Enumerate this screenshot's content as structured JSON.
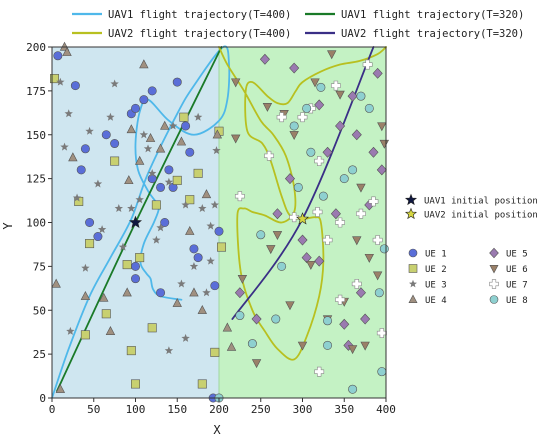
{
  "chart_data": {
    "type": "scatter",
    "xlabel": "X",
    "ylabel": "Y",
    "xlim": [
      0,
      400
    ],
    "ylim": [
      0,
      200
    ],
    "xticks": [
      0,
      50,
      100,
      150,
      200,
      250,
      300,
      350,
      400
    ],
    "yticks": [
      0,
      25,
      50,
      75,
      100,
      125,
      150,
      175,
      200
    ],
    "grid": false,
    "regions": [
      {
        "x_range": [
          0,
          200
        ],
        "color": "#cfe6f0"
      },
      {
        "x_range": [
          200,
          400
        ],
        "color": "#c4f2c4"
      }
    ],
    "trajectories": [
      {
        "name": "UAV1 flight trajectory(T=400)",
        "color": "#4fb8ea",
        "width": 1.8,
        "points": [
          [
            0,
            0
          ],
          [
            20,
            28
          ],
          [
            45,
            58
          ],
          [
            70,
            80
          ],
          [
            95,
            102
          ],
          [
            115,
            128
          ],
          [
            150,
            162
          ],
          [
            170,
            178
          ],
          [
            205,
            200
          ],
          [
            212,
            190
          ],
          [
            210,
            170
          ],
          [
            200,
            158
          ],
          [
            170,
            150
          ],
          [
            140,
            158
          ],
          [
            115,
            170
          ],
          [
            105,
            163
          ],
          [
            100,
            145
          ],
          [
            103,
            130
          ],
          [
            115,
            118
          ],
          [
            124,
            112
          ],
          [
            128,
            108
          ],
          [
            122,
            100
          ],
          [
            110,
            88
          ],
          [
            106,
            77
          ],
          [
            113,
            71
          ],
          [
            118,
            68
          ],
          [
            121,
            62
          ],
          [
            130,
            58
          ],
          [
            155,
            56
          ]
        ]
      },
      {
        "name": "UAV1 flight trajectory(T=320)",
        "color": "#1a7a28",
        "width": 1.8,
        "points": [
          [
            6,
            4
          ],
          [
            100,
            100
          ],
          [
            203,
            200
          ]
        ]
      },
      {
        "name": "UAV2 flight trajectory(T=400)",
        "color": "#b8c020",
        "width": 1.8,
        "points": [
          [
            200,
            200
          ],
          [
            210,
            190
          ],
          [
            230,
            175
          ],
          [
            250,
            158
          ],
          [
            265,
            150
          ],
          [
            280,
            138
          ],
          [
            290,
            120
          ],
          [
            290,
            106
          ],
          [
            275,
            100
          ],
          [
            255,
            104
          ],
          [
            240,
            106
          ],
          [
            230,
            108
          ],
          [
            222,
            104
          ],
          [
            226,
            72
          ],
          [
            240,
            50
          ],
          [
            255,
            38
          ],
          [
            270,
            28
          ],
          [
            290,
            22
          ],
          [
            305,
            35
          ],
          [
            320,
            58
          ],
          [
            325,
            78
          ],
          [
            322,
            100
          ],
          [
            315,
            103
          ],
          [
            300,
            102
          ],
          [
            285,
            104
          ],
          [
            275,
            115
          ],
          [
            262,
            135
          ],
          [
            252,
            145
          ],
          [
            234,
            152
          ],
          [
            232,
            175
          ],
          [
            240,
            180
          ],
          [
            258,
            172
          ],
          [
            270,
            168
          ],
          [
            282,
            168
          ],
          [
            292,
            175
          ],
          [
            300,
            180
          ],
          [
            322,
            186
          ],
          [
            345,
            190
          ],
          [
            368,
            192
          ],
          [
            390,
            196
          ],
          [
            400,
            200
          ]
        ]
      },
      {
        "name": "UAV2 flight trajectory(T=320)",
        "color": "#3a2f86",
        "width": 1.8,
        "points": [
          [
            216,
            45
          ],
          [
            300,
            102
          ],
          [
            385,
            200
          ]
        ]
      }
    ],
    "legend_top": [
      {
        "name": "UAV1 flight trajectory(T=400)",
        "color": "#4fb8ea"
      },
      {
        "name": "UAV1 flight trajectory(T=320)",
        "color": "#1a7a28"
      },
      {
        "name": "UAV2 flight trajectory(T=400)",
        "color": "#b8c020"
      },
      {
        "name": "UAV2 flight trajectory(T=320)",
        "color": "#3a2f86"
      }
    ],
    "initial_positions": [
      {
        "name": "UAV1 initial position",
        "x": 100,
        "y": 100,
        "color": "#101840"
      },
      {
        "name": "UAV2 initial position",
        "x": 300,
        "y": 102,
        "color": "#d6d640"
      }
    ],
    "ue_groups": [
      {
        "name": "UE 1",
        "marker": "circle",
        "color": "#5a6ed8",
        "points": [
          [
            7,
            195
          ],
          [
            28,
            178
          ],
          [
            35,
            130
          ],
          [
            40,
            142
          ],
          [
            45,
            100
          ],
          [
            55,
            92
          ],
          [
            65,
            150
          ],
          [
            75,
            145
          ],
          [
            95,
            162
          ],
          [
            100,
            165
          ],
          [
            110,
            170
          ],
          [
            120,
            175
          ],
          [
            120,
            125
          ],
          [
            130,
            120
          ],
          [
            135,
            100
          ],
          [
            140,
            130
          ],
          [
            145,
            120
          ],
          [
            150,
            180
          ],
          [
            160,
            155
          ],
          [
            165,
            140
          ],
          [
            170,
            85
          ],
          [
            175,
            80
          ],
          [
            100,
            75
          ],
          [
            100,
            68
          ],
          [
            130,
            60
          ],
          [
            200,
            95
          ],
          [
            195,
            64
          ],
          [
            193,
            0
          ]
        ]
      },
      {
        "name": "UE 2",
        "marker": "square",
        "color": "#c8d070",
        "points": [
          [
            3,
            182
          ],
          [
            45,
            88
          ],
          [
            32,
            112
          ],
          [
            40,
            36
          ],
          [
            65,
            48
          ],
          [
            75,
            135
          ],
          [
            90,
            76
          ],
          [
            95,
            27
          ],
          [
            100,
            8
          ],
          [
            105,
            80
          ],
          [
            120,
            40
          ],
          [
            125,
            110
          ],
          [
            150,
            124
          ],
          [
            158,
            160
          ],
          [
            165,
            113
          ],
          [
            175,
            128
          ],
          [
            180,
            8
          ],
          [
            195,
            26
          ],
          [
            200,
            152
          ],
          [
            203,
            86
          ]
        ]
      },
      {
        "name": "UE 3",
        "marker": "star",
        "color": "#7a7a7a",
        "points": [
          [
            10,
            180
          ],
          [
            20,
            162
          ],
          [
            22,
            38
          ],
          [
            30,
            114
          ],
          [
            15,
            143
          ],
          [
            40,
            74
          ],
          [
            45,
            152
          ],
          [
            55,
            122
          ],
          [
            60,
            96
          ],
          [
            70,
            160
          ],
          [
            75,
            179
          ],
          [
            80,
            108
          ],
          [
            85,
            86
          ],
          [
            95,
            108
          ],
          [
            105,
            113
          ],
          [
            110,
            150
          ],
          [
            115,
            142
          ],
          [
            120,
            128
          ],
          [
            125,
            90
          ],
          [
            130,
            97
          ],
          [
            140,
            123
          ],
          [
            145,
            155
          ],
          [
            155,
            65
          ],
          [
            160,
            110
          ],
          [
            170,
            75
          ],
          [
            175,
            160
          ],
          [
            180,
            108
          ],
          [
            185,
            60
          ],
          [
            190,
            98
          ],
          [
            195,
            110
          ],
          [
            197,
            141
          ],
          [
            140,
            27
          ],
          [
            160,
            34
          ],
          [
            190,
            78
          ]
        ]
      },
      {
        "name": "UE 4",
        "marker": "triangle",
        "color": "#a09080",
        "points": [
          [
            5,
            65
          ],
          [
            10,
            5
          ],
          [
            15,
            200
          ],
          [
            18,
            197
          ],
          [
            25,
            137
          ],
          [
            40,
            58
          ],
          [
            62,
            57
          ],
          [
            70,
            38
          ],
          [
            90,
            60
          ],
          [
            92,
            124
          ],
          [
            95,
            153
          ],
          [
            105,
            135
          ],
          [
            110,
            190
          ],
          [
            118,
            148
          ],
          [
            130,
            142
          ],
          [
            135,
            155
          ],
          [
            150,
            54
          ],
          [
            155,
            146
          ],
          [
            165,
            95
          ],
          [
            170,
            60
          ],
          [
            180,
            50
          ],
          [
            185,
            116
          ],
          [
            198,
            150
          ],
          [
            210,
            40
          ],
          [
            215,
            29
          ]
        ]
      },
      {
        "name": "UE 5",
        "marker": "diamond",
        "color": "#9a7ab0",
        "points": [
          [
            225,
            60
          ],
          [
            245,
            45
          ],
          [
            255,
            193
          ],
          [
            270,
            105
          ],
          [
            285,
            125
          ],
          [
            290,
            188
          ],
          [
            300,
            90
          ],
          [
            305,
            80
          ],
          [
            320,
            78
          ],
          [
            320,
            167
          ],
          [
            330,
            140
          ],
          [
            340,
            105
          ],
          [
            345,
            155
          ],
          [
            350,
            42
          ],
          [
            355,
            30
          ],
          [
            360,
            172
          ],
          [
            365,
            150
          ],
          [
            370,
            60
          ],
          [
            375,
            45
          ],
          [
            380,
            110
          ],
          [
            385,
            140
          ],
          [
            390,
            185
          ],
          [
            395,
            130
          ]
        ]
      },
      {
        "name": "UE 6",
        "marker": "triangle-down",
        "color": "#9a8068",
        "points": [
          [
            220,
            148
          ],
          [
            220,
            180
          ],
          [
            228,
            68
          ],
          [
            245,
            20
          ],
          [
            258,
            166
          ],
          [
            262,
            85
          ],
          [
            270,
            93
          ],
          [
            278,
            162
          ],
          [
            285,
            53
          ],
          [
            290,
            150
          ],
          [
            300,
            30
          ],
          [
            310,
            76
          ],
          [
            315,
            180
          ],
          [
            330,
            45
          ],
          [
            335,
            196
          ],
          [
            345,
            173
          ],
          [
            350,
            55
          ],
          [
            360,
            28
          ],
          [
            365,
            90
          ],
          [
            370,
            120
          ],
          [
            375,
            30
          ],
          [
            380,
            80
          ],
          [
            390,
            70
          ],
          [
            395,
            155
          ],
          [
            398,
            145
          ]
        ]
      },
      {
        "name": "UE 7",
        "marker": "plus",
        "color": "#ffffff",
        "points": [
          [
            260,
            138
          ],
          [
            275,
            160
          ],
          [
            290,
            103
          ],
          [
            300,
            160
          ],
          [
            310,
            165
          ],
          [
            318,
            106
          ],
          [
            320,
            135
          ],
          [
            330,
            90
          ],
          [
            340,
            178
          ],
          [
            345,
            56
          ],
          [
            345,
            100
          ],
          [
            365,
            65
          ],
          [
            370,
            105
          ],
          [
            378,
            190
          ],
          [
            385,
            112
          ],
          [
            395,
            37
          ],
          [
            390,
            90
          ],
          [
            320,
            15
          ],
          [
            225,
            115
          ]
        ]
      },
      {
        "name": "UE 8",
        "marker": "circle",
        "color": "#8ed0d0",
        "points": [
          [
            200,
            0
          ],
          [
            225,
            47
          ],
          [
            240,
            31
          ],
          [
            250,
            93
          ],
          [
            268,
            45
          ],
          [
            275,
            75
          ],
          [
            290,
            155
          ],
          [
            295,
            120
          ],
          [
            305,
            165
          ],
          [
            310,
            140
          ],
          [
            322,
            177
          ],
          [
            325,
            115
          ],
          [
            330,
            44
          ],
          [
            330,
            30
          ],
          [
            350,
            125
          ],
          [
            360,
            130
          ],
          [
            370,
            172
          ],
          [
            380,
            165
          ],
          [
            392,
            60
          ],
          [
            395,
            15
          ],
          [
            398,
            85
          ],
          [
            360,
            5
          ]
        ]
      }
    ]
  }
}
